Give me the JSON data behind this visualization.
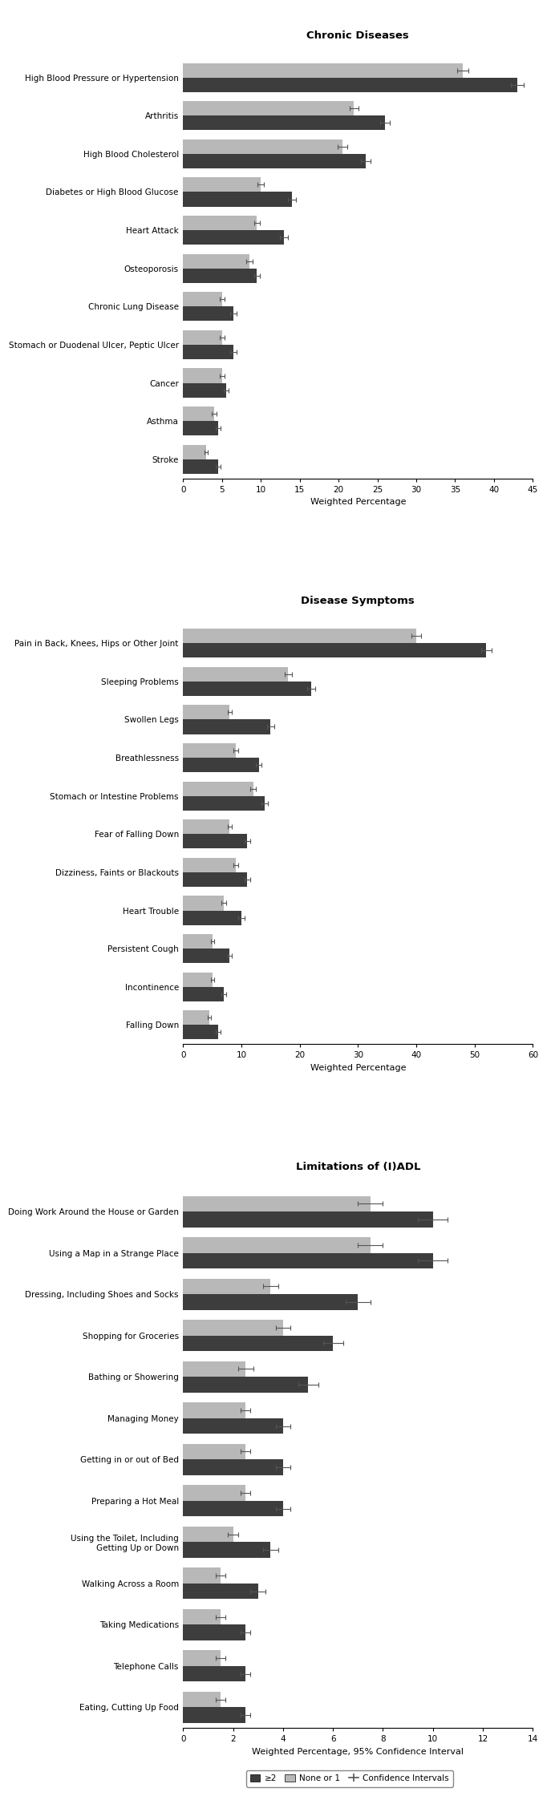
{
  "chronic_diseases": {
    "title": "Chronic Diseases",
    "xlabel": "Weighted Percentage",
    "xlim": [
      0,
      45
    ],
    "xticks": [
      0,
      5,
      10,
      15,
      20,
      25,
      30,
      35,
      40,
      45
    ],
    "categories": [
      "High Blood Pressure or Hypertension",
      "Arthritis",
      "High Blood Cholesterol",
      "Diabetes or High Blood Glucose",
      "Heart Attack",
      "Osteoporosis",
      "Chronic Lung Disease",
      "Stomach or Duodenal Ulcer, Peptic Ulcer",
      "Cancer",
      "Asthma",
      "Stroke"
    ],
    "none_or_one": [
      36.0,
      22.0,
      20.5,
      10.0,
      9.5,
      8.5,
      5.0,
      5.0,
      5.0,
      4.0,
      3.0
    ],
    "two_plus": [
      43.0,
      26.0,
      23.5,
      14.0,
      13.0,
      9.5,
      6.5,
      6.5,
      5.5,
      4.5,
      4.5
    ],
    "none_or_one_err": [
      0.7,
      0.6,
      0.6,
      0.4,
      0.4,
      0.4,
      0.3,
      0.3,
      0.3,
      0.3,
      0.2
    ],
    "two_plus_err": [
      0.8,
      0.6,
      0.6,
      0.5,
      0.5,
      0.4,
      0.4,
      0.4,
      0.3,
      0.3,
      0.3
    ]
  },
  "disease_symptoms": {
    "title": "Disease Symptoms",
    "xlabel": "Weighted Percentage",
    "xlim": [
      0,
      60
    ],
    "xticks": [
      0,
      10,
      20,
      30,
      40,
      50,
      60
    ],
    "categories": [
      "Pain in Back, Knees, Hips or Other Joint",
      "Sleeping Problems",
      "Swollen Legs",
      "Breathlessness",
      "Stomach or Intestine Problems",
      "Fear of Falling Down",
      "Dizziness, Faints or Blackouts",
      "Heart Trouble",
      "Persistent Cough",
      "Incontinence",
      "Falling Down"
    ],
    "none_or_one": [
      40.0,
      18.0,
      8.0,
      9.0,
      12.0,
      8.0,
      9.0,
      7.0,
      5.0,
      5.0,
      4.5
    ],
    "two_plus": [
      52.0,
      22.0,
      15.0,
      13.0,
      14.0,
      11.0,
      11.0,
      10.0,
      8.0,
      7.0,
      6.0
    ],
    "none_or_one_err": [
      0.8,
      0.6,
      0.4,
      0.4,
      0.5,
      0.4,
      0.4,
      0.4,
      0.3,
      0.3,
      0.3
    ],
    "two_plus_err": [
      0.9,
      0.7,
      0.6,
      0.5,
      0.6,
      0.5,
      0.5,
      0.5,
      0.4,
      0.4,
      0.4
    ]
  },
  "limitations_iadl": {
    "title": "Limitations of (I)ADL",
    "xlabel": "Weighted Percentage, 95% Confidence Interval",
    "xlim": [
      0,
      14
    ],
    "xticks": [
      0,
      2,
      4,
      6,
      8,
      10,
      12,
      14
    ],
    "categories": [
      "Doing Work Around the House or Garden",
      "Using a Map in a Strange Place",
      "Dressing, Including Shoes and Socks",
      "Shopping for Groceries",
      "Bathing or Showering",
      "Managing Money",
      "Getting in or out of Bed",
      "Preparing a Hot Meal",
      "Using the Toilet, Including\nGetting Up or Down",
      "Walking Across a Room",
      "Taking Medications",
      "Telephone Calls",
      "Eating, Cutting Up Food"
    ],
    "none_or_one": [
      7.5,
      7.5,
      3.5,
      4.0,
      2.5,
      2.5,
      2.5,
      2.5,
      2.0,
      1.5,
      1.5,
      1.5,
      1.5
    ],
    "two_plus": [
      10.0,
      10.0,
      7.0,
      6.0,
      5.0,
      4.0,
      4.0,
      4.0,
      3.5,
      3.0,
      2.5,
      2.5,
      2.5
    ],
    "none_or_one_err": [
      0.5,
      0.5,
      0.3,
      0.3,
      0.3,
      0.2,
      0.2,
      0.2,
      0.2,
      0.2,
      0.2,
      0.2,
      0.2
    ],
    "two_plus_err": [
      0.6,
      0.6,
      0.5,
      0.4,
      0.4,
      0.3,
      0.3,
      0.3,
      0.3,
      0.3,
      0.2,
      0.2,
      0.2
    ]
  },
  "color_two_plus": "#3d3d3d",
  "color_none_or_one": "#b8b8b8",
  "bar_height": 0.38,
  "legend_label_two_plus": "≥2",
  "legend_label_none_or_one": "None or 1",
  "legend_label_ci": "Confidence Intervals"
}
